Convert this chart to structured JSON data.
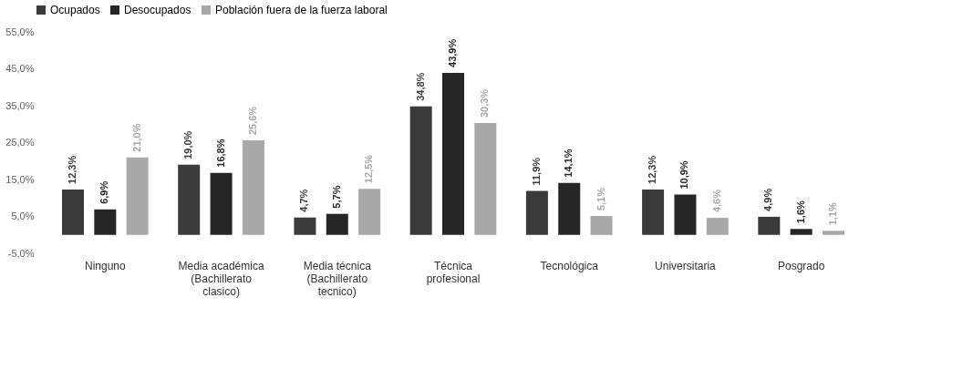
{
  "chart_data": {
    "type": "bar",
    "categories": [
      "Ninguno",
      "Media académica\n(Bachillerato\nclasico)",
      "Media técnica\n(Bachillerato\ntecnico)",
      "Técnica\nprofesional",
      "Tecnológica",
      "Universitaria",
      "Posgrado"
    ],
    "series": [
      {
        "name": "Ocupados",
        "color": "#3a3a3a",
        "values": [
          12.3,
          19.0,
          4.7,
          34.8,
          11.9,
          12.3,
          4.9
        ],
        "value_labels": [
          "12,3%",
          "19,0%",
          "4,7%",
          "34,8%",
          "11,9%",
          "12,3%",
          "4,9%"
        ]
      },
      {
        "name": "Desocupados",
        "color": "#262626",
        "values": [
          6.9,
          16.8,
          5.7,
          43.9,
          14.1,
          10.9,
          1.6
        ],
        "value_labels": [
          "6,9%",
          "16,8%",
          "5,7%",
          "43,9%",
          "14,1%",
          "10,9%",
          "1,6%"
        ]
      },
      {
        "name": "Población fuera de la fuerza laboral",
        "color": "#a8a8a8",
        "values": [
          21.0,
          25.6,
          12.5,
          30.3,
          5.1,
          4.6,
          1.1
        ],
        "value_labels": [
          "21,0%",
          "25,6%",
          "12,5%",
          "30,3%",
          "5,1%",
          "4,6%",
          "1,1%"
        ]
      }
    ],
    "ylim": [
      -5,
      55
    ],
    "yticks": [
      {
        "value": -5,
        "label": "-5,0%"
      },
      {
        "value": 5,
        "label": "5,0%"
      },
      {
        "value": 15,
        "label": "15,0%"
      },
      {
        "value": 25,
        "label": "25,0%"
      },
      {
        "value": 35,
        "label": "35,0%"
      },
      {
        "value": 45,
        "label": "45,0%"
      },
      {
        "value": 55,
        "label": "55,0%"
      }
    ],
    "legend": "top",
    "grid": false
  }
}
